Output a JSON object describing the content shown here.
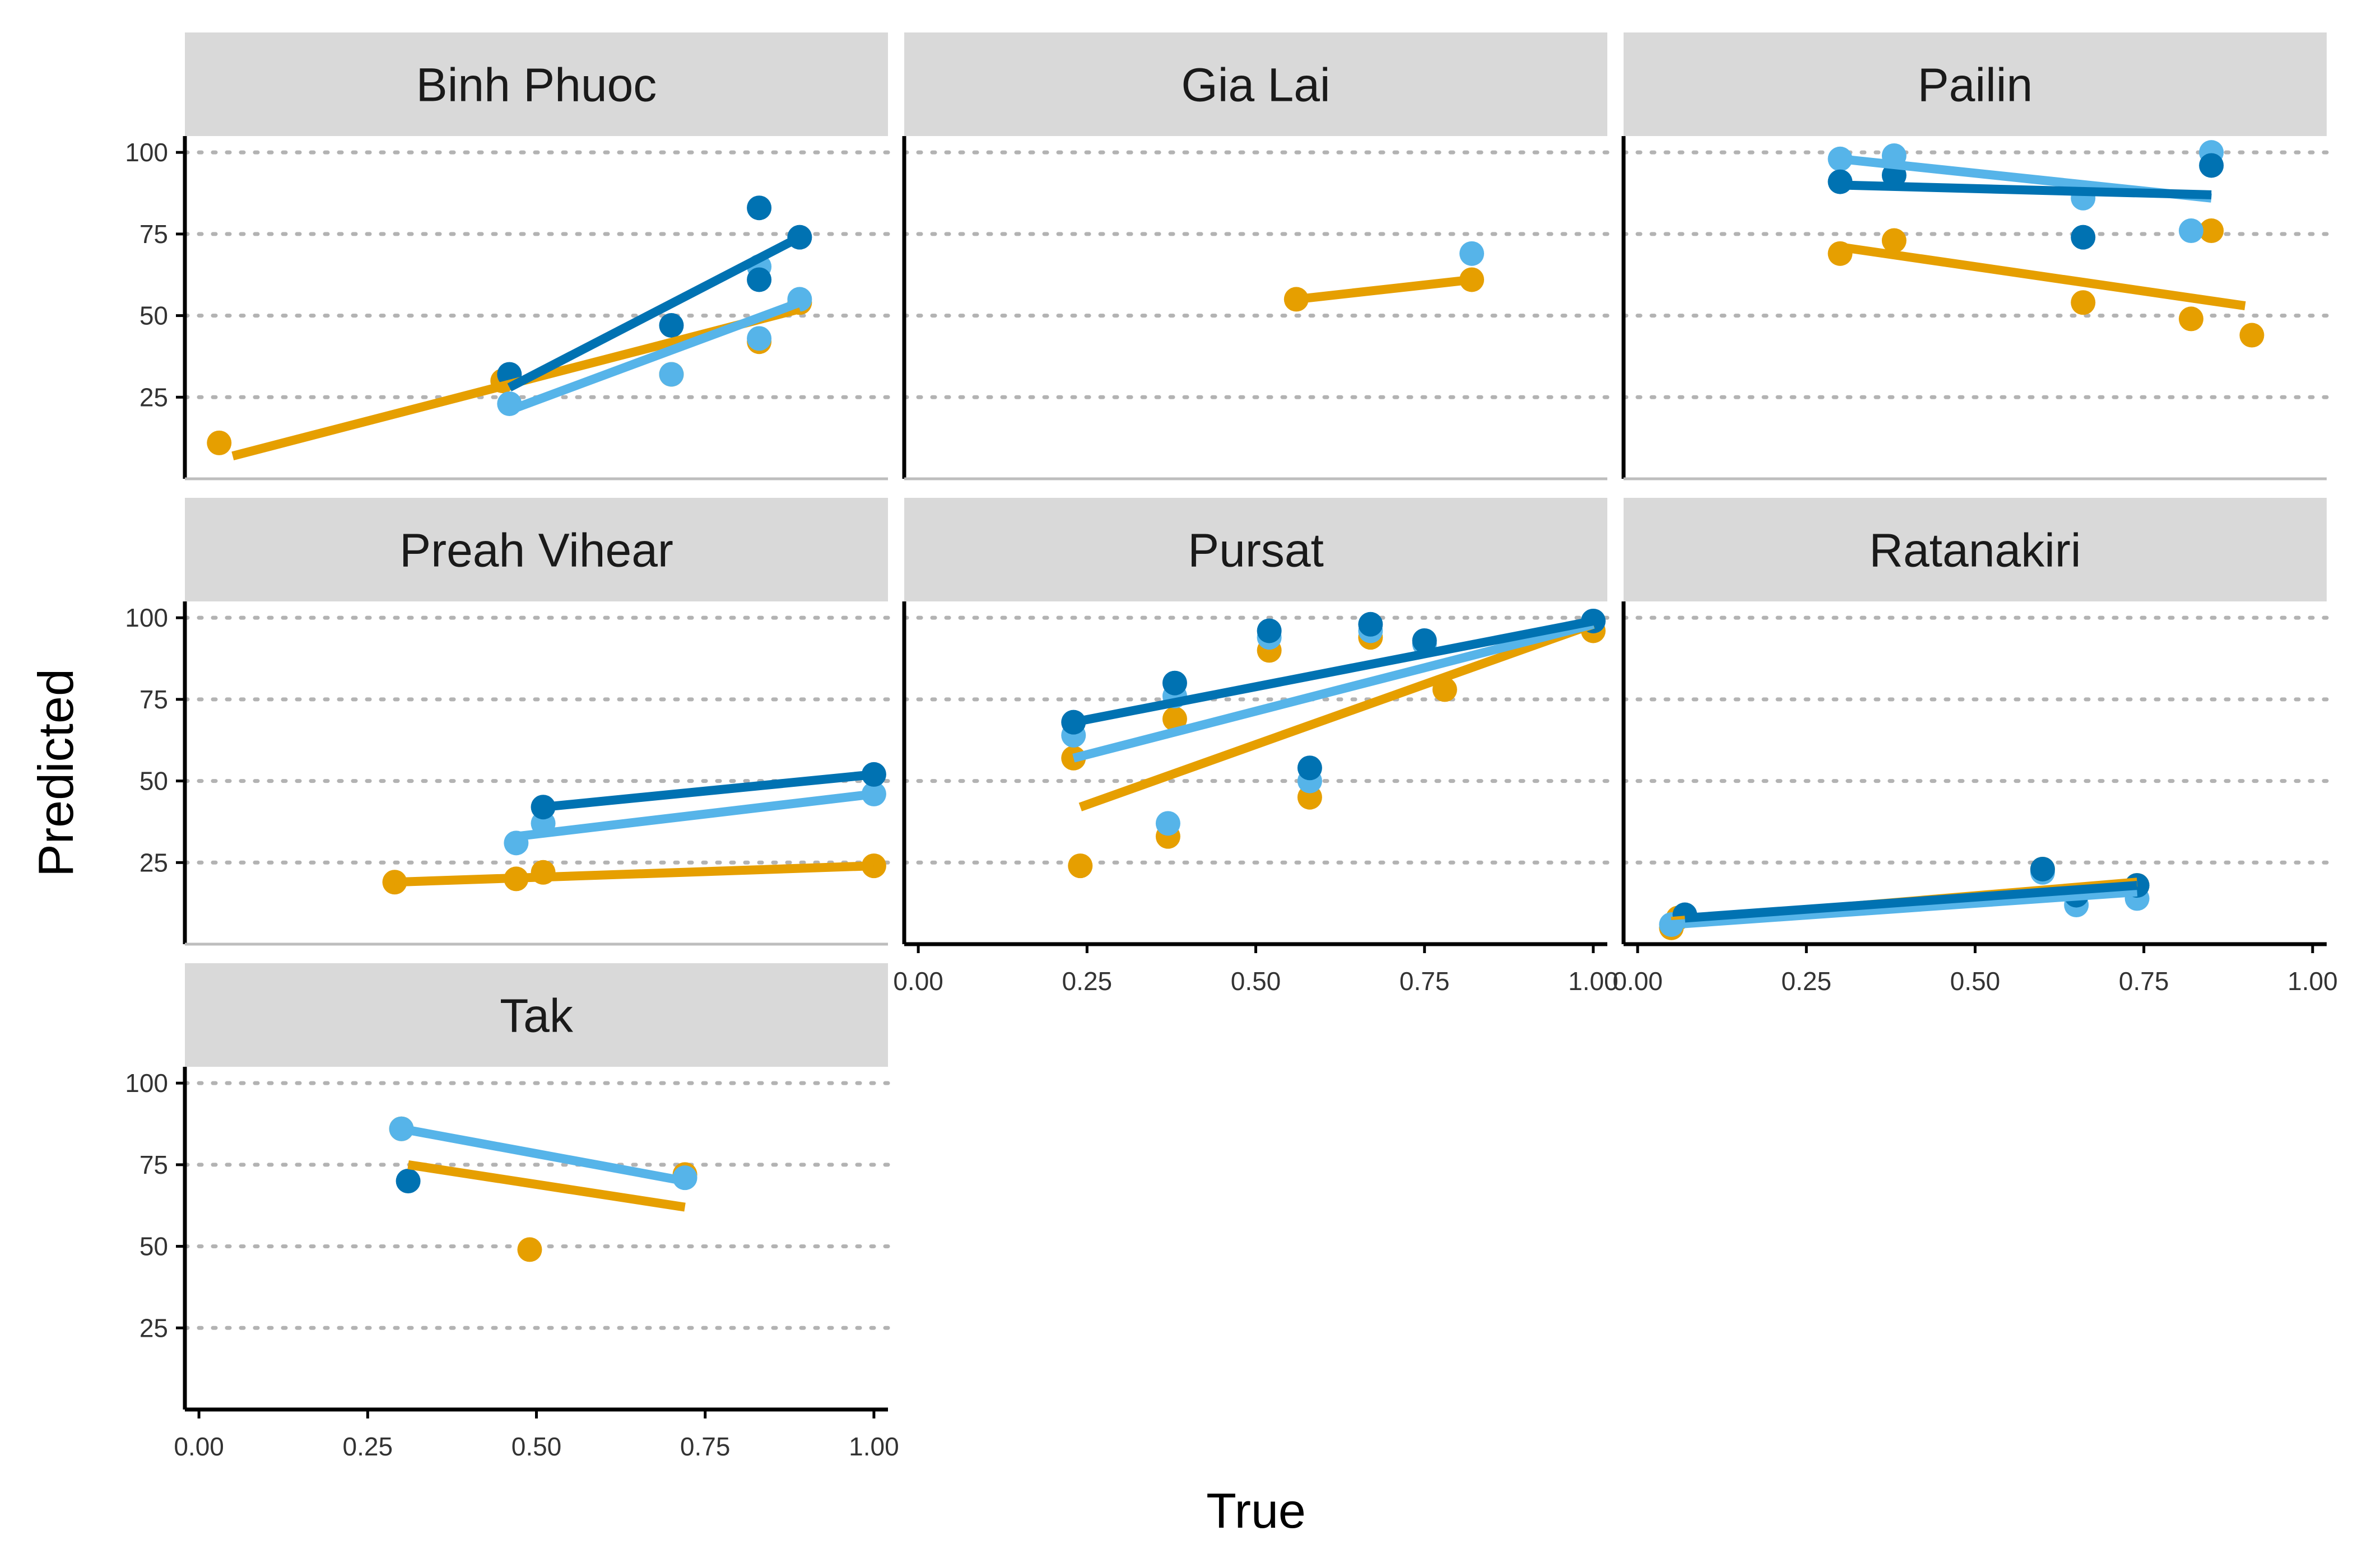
{
  "chart_data": {
    "type": "scatter",
    "xlabel": "True",
    "ylabel": "Predicted",
    "xlim": [
      0,
      1
    ],
    "ylim": [
      0,
      105
    ],
    "x_ticks": [
      "0.00",
      "0.25",
      "0.50",
      "0.75",
      "1.00"
    ],
    "y_ticks": [
      "25",
      "50",
      "75",
      "100"
    ],
    "grid": "horizontal-dotted",
    "legend": "none",
    "series_colors": [
      "#E69F00",
      "#56B4E9",
      "#0072B2"
    ],
    "panels": [
      {
        "label": "Binh Phuoc",
        "series": [
          {
            "color": "#E69F00",
            "points": [
              [
                0.03,
                11
              ],
              [
                0.45,
                30
              ],
              [
                0.7,
                32
              ],
              [
                0.83,
                42
              ],
              [
                0.89,
                54
              ]
            ],
            "fit": [
              [
                0.05,
                7
              ],
              [
                0.89,
                52
              ]
            ]
          },
          {
            "color": "#56B4E9",
            "points": [
              [
                0.46,
                23
              ],
              [
                0.7,
                32
              ],
              [
                0.83,
                43
              ],
              [
                0.83,
                65
              ],
              [
                0.89,
                55
              ]
            ],
            "fit": [
              [
                0.46,
                21
              ],
              [
                0.89,
                54
              ]
            ]
          },
          {
            "color": "#0072B2",
            "points": [
              [
                0.46,
                32
              ],
              [
                0.7,
                47
              ],
              [
                0.83,
                61
              ],
              [
                0.83,
                83
              ],
              [
                0.89,
                74
              ]
            ],
            "fit": [
              [
                0.46,
                28
              ],
              [
                0.89,
                74
              ]
            ]
          }
        ]
      },
      {
        "label": "Gia Lai",
        "series": [
          {
            "color": "#E69F00",
            "points": [
              [
                0.56,
                55
              ],
              [
                0.82,
                61
              ]
            ],
            "fit": [
              [
                0.56,
                55
              ],
              [
                0.82,
                61
              ]
            ]
          },
          {
            "color": "#56B4E9",
            "points": [
              [
                0.82,
                69
              ]
            ],
            "fit": []
          },
          {
            "color": "#0072B2",
            "points": [],
            "fit": []
          }
        ]
      },
      {
        "label": "Pailin",
        "series": [
          {
            "color": "#E69F00",
            "points": [
              [
                0.3,
                69
              ],
              [
                0.38,
                73
              ],
              [
                0.66,
                54
              ],
              [
                0.82,
                49
              ],
              [
                0.85,
                76
              ],
              [
                0.91,
                44
              ]
            ],
            "fit": [
              [
                0.3,
                71
              ],
              [
                0.9,
                53
              ]
            ]
          },
          {
            "color": "#56B4E9",
            "points": [
              [
                0.3,
                98
              ],
              [
                0.38,
                99
              ],
              [
                0.66,
                86
              ],
              [
                0.82,
                76
              ],
              [
                0.85,
                100
              ]
            ],
            "fit": [
              [
                0.3,
                98
              ],
              [
                0.85,
                86
              ]
            ]
          },
          {
            "color": "#0072B2",
            "points": [
              [
                0.3,
                91
              ],
              [
                0.38,
                93
              ],
              [
                0.66,
                74
              ],
              [
                0.85,
                96
              ]
            ],
            "fit": [
              [
                0.3,
                90
              ],
              [
                0.85,
                87
              ]
            ]
          }
        ]
      },
      {
        "label": "Preah Vihear",
        "series": [
          {
            "color": "#E69F00",
            "points": [
              [
                0.29,
                19
              ],
              [
                0.47,
                20
              ],
              [
                0.51,
                22
              ],
              [
                1.0,
                24
              ]
            ],
            "fit": [
              [
                0.29,
                19
              ],
              [
                1.0,
                24
              ]
            ]
          },
          {
            "color": "#56B4E9",
            "points": [
              [
                0.47,
                31
              ],
              [
                0.51,
                37
              ],
              [
                1.0,
                46
              ]
            ],
            "fit": [
              [
                0.47,
                33
              ],
              [
                1.0,
                46
              ]
            ]
          },
          {
            "color": "#0072B2",
            "points": [
              [
                0.51,
                42
              ],
              [
                1.0,
                52
              ]
            ],
            "fit": [
              [
                0.51,
                42
              ],
              [
                1.0,
                52
              ]
            ]
          }
        ]
      },
      {
        "label": "Pursat",
        "series": [
          {
            "color": "#E69F00",
            "points": [
              [
                0.23,
                57
              ],
              [
                0.24,
                24
              ],
              [
                0.37,
                33
              ],
              [
                0.38,
                69
              ],
              [
                0.52,
                90
              ],
              [
                0.58,
                45
              ],
              [
                0.67,
                94
              ],
              [
                0.78,
                78
              ],
              [
                1.0,
                96
              ]
            ],
            "fit": [
              [
                0.24,
                42
              ],
              [
                1.0,
                98
              ]
            ]
          },
          {
            "color": "#56B4E9",
            "points": [
              [
                0.23,
                64
              ],
              [
                0.37,
                37
              ],
              [
                0.38,
                76
              ],
              [
                0.52,
                94
              ],
              [
                0.58,
                50
              ],
              [
                0.67,
                96
              ],
              [
                0.75,
                92
              ],
              [
                1.0,
                99
              ]
            ],
            "fit": [
              [
                0.23,
                57
              ],
              [
                1.0,
                98
              ]
            ]
          },
          {
            "color": "#0072B2",
            "points": [
              [
                0.23,
                68
              ],
              [
                0.38,
                80
              ],
              [
                0.52,
                96
              ],
              [
                0.58,
                54
              ],
              [
                0.67,
                98
              ],
              [
                0.75,
                93
              ],
              [
                1.0,
                99
              ]
            ],
            "fit": [
              [
                0.23,
                68
              ],
              [
                1.0,
                99
              ]
            ]
          }
        ]
      },
      {
        "label": "Ratanakiri",
        "series": [
          {
            "color": "#E69F00",
            "points": [
              [
                0.05,
                5
              ],
              [
                0.06,
                8
              ],
              [
                0.6,
                23
              ],
              [
                0.65,
                15
              ],
              [
                0.74,
                18
              ]
            ],
            "fit": [
              [
                0.05,
                7
              ],
              [
                0.74,
                19
              ]
            ]
          },
          {
            "color": "#56B4E9",
            "points": [
              [
                0.05,
                6
              ],
              [
                0.6,
                22
              ],
              [
                0.65,
                12
              ],
              [
                0.74,
                14
              ]
            ],
            "fit": [
              [
                0.05,
                6
              ],
              [
                0.74,
                16
              ]
            ]
          },
          {
            "color": "#0072B2",
            "points": [
              [
                0.07,
                9
              ],
              [
                0.6,
                23
              ],
              [
                0.65,
                15
              ],
              [
                0.74,
                18
              ]
            ],
            "fit": [
              [
                0.07,
                8
              ],
              [
                0.74,
                18
              ]
            ]
          }
        ]
      },
      {
        "label": "Tak",
        "series": [
          {
            "color": "#E69F00",
            "points": [
              [
                0.3,
                86
              ],
              [
                0.49,
                49
              ],
              [
                0.72,
                72
              ]
            ],
            "fit": [
              [
                0.31,
                75
              ],
              [
                0.72,
                62
              ]
            ]
          },
          {
            "color": "#56B4E9",
            "points": [
              [
                0.3,
                86
              ],
              [
                0.72,
                71
              ]
            ],
            "fit": [
              [
                0.3,
                86
              ],
              [
                0.72,
                70
              ]
            ]
          },
          {
            "color": "#0072B2",
            "points": [
              [
                0.31,
                70
              ]
            ],
            "fit": []
          }
        ]
      }
    ]
  }
}
